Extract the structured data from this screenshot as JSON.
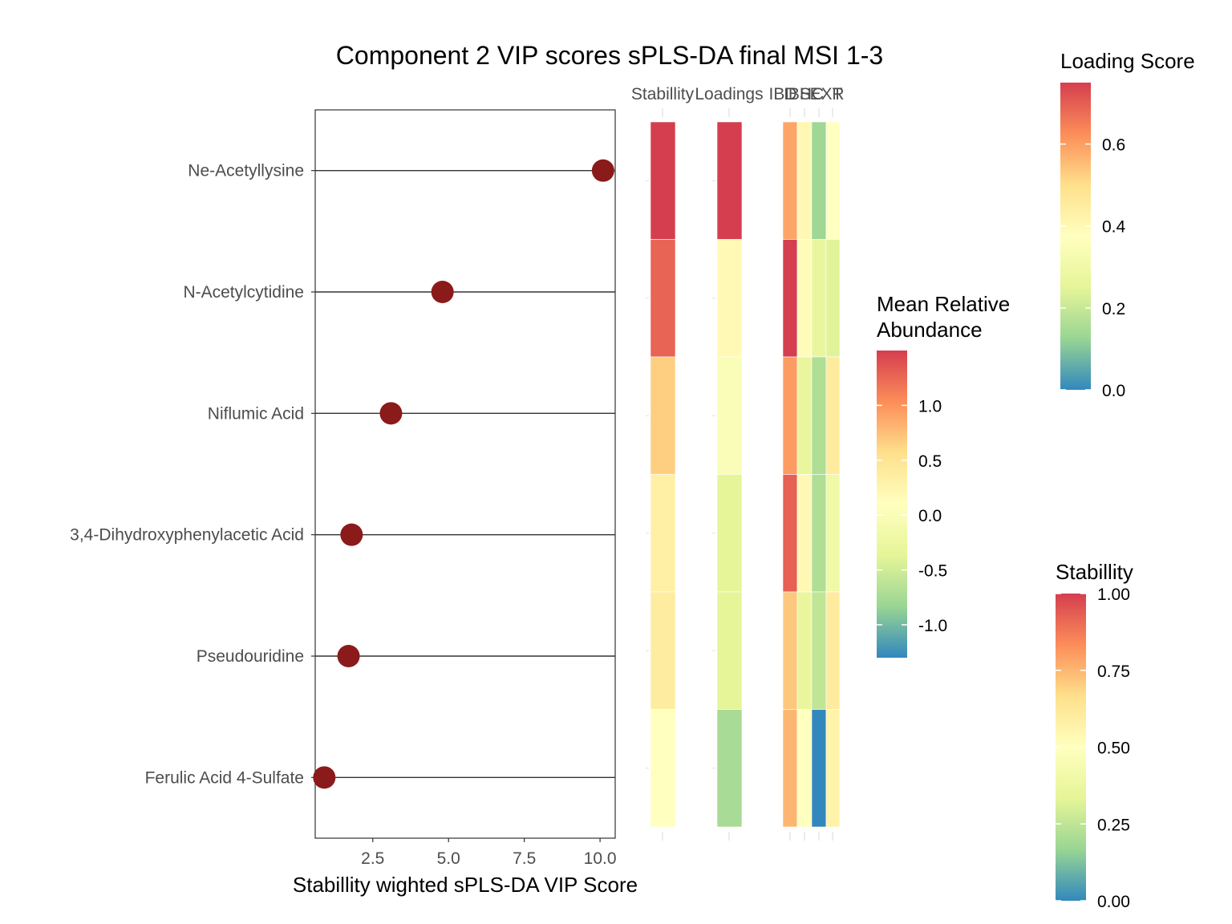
{
  "chart_data": {
    "type": "scatter",
    "title": "Component 2 VIP scores sPLS-DA final MSI 1-3",
    "xlabel": "Stabillity wighted sPLS-DA VIP Score",
    "ylabel": "",
    "xlim": [
      0.6,
      10.5
    ],
    "x_ticks": [
      "2.5",
      "5.0",
      "7.5",
      "10.0"
    ],
    "x_tick_values": [
      2.5,
      5.0,
      7.5,
      10.0
    ],
    "point_color": "#8b1a1a",
    "categories": [
      "Ne-Acetyllysine",
      "N-Acetylcytidine",
      "Niflumic Acid",
      "3,4-Dihydroxyphenylacetic Acid",
      "Pseudouridine",
      "Ferulic Acid 4-Sulfate"
    ],
    "vip_scores": [
      10.1,
      4.8,
      3.1,
      1.8,
      1.7,
      0.9
    ],
    "heatmap": {
      "columns": [
        "Stabillity",
        "Loadings",
        "IBD",
        "IBS",
        "HC",
        "EXT",
        "R"
      ],
      "header_labels": [
        "Stabillity",
        "Loadings",
        "IBD",
        "IBS",
        "HC",
        "EXT",
        "R"
      ],
      "stability": [
        1.0,
        0.92,
        0.7,
        0.58,
        0.6,
        0.5
      ],
      "loadings": [
        0.75,
        0.4,
        0.35,
        0.25,
        0.25,
        0.15
      ],
      "abundance": {
        "IBD": [
          0.9,
          1.5,
          0.95,
          1.3,
          0.7,
          0.8
        ],
        "IBS": [
          0.2,
          0.15,
          -0.3,
          0.2,
          -0.3,
          0.1
        ],
        "HC": [
          -0.8,
          -0.3,
          -0.7,
          -0.7,
          -0.6,
          -1.3
        ],
        "EXT": [
          0.1,
          -0.4,
          0.4,
          -0.2,
          0.4,
          0.3
        ]
      }
    },
    "legends": {
      "loading": {
        "title": "Loading Score",
        "range": [
          0.0,
          0.75
        ],
        "ticks": [
          "0.0",
          "0.2",
          "0.4",
          "0.6"
        ],
        "tick_values": [
          0.0,
          0.2,
          0.4,
          0.6
        ]
      },
      "abundance": {
        "title_line1": "Mean Relative",
        "title_line2": "Abundance",
        "range": [
          -1.3,
          1.5
        ],
        "ticks": [
          "-1.0",
          "-0.5",
          "0.0",
          "0.5",
          "1.0"
        ],
        "tick_values": [
          -1.0,
          -0.5,
          0.0,
          0.5,
          1.0
        ]
      },
      "stability": {
        "title": "Stabillity",
        "range": [
          0.0,
          1.0
        ],
        "ticks": [
          "0.00",
          "0.25",
          "0.50",
          "0.75",
          "1.00"
        ],
        "tick_values": [
          0.0,
          0.25,
          0.5,
          0.75,
          1.0
        ]
      }
    },
    "palette": [
      "#3288bd",
      "#99d594",
      "#e6f598",
      "#ffffbf",
      "#fee08b",
      "#fc8d59",
      "#d53e4f"
    ],
    "grid": false,
    "legend_placement": "right"
  }
}
